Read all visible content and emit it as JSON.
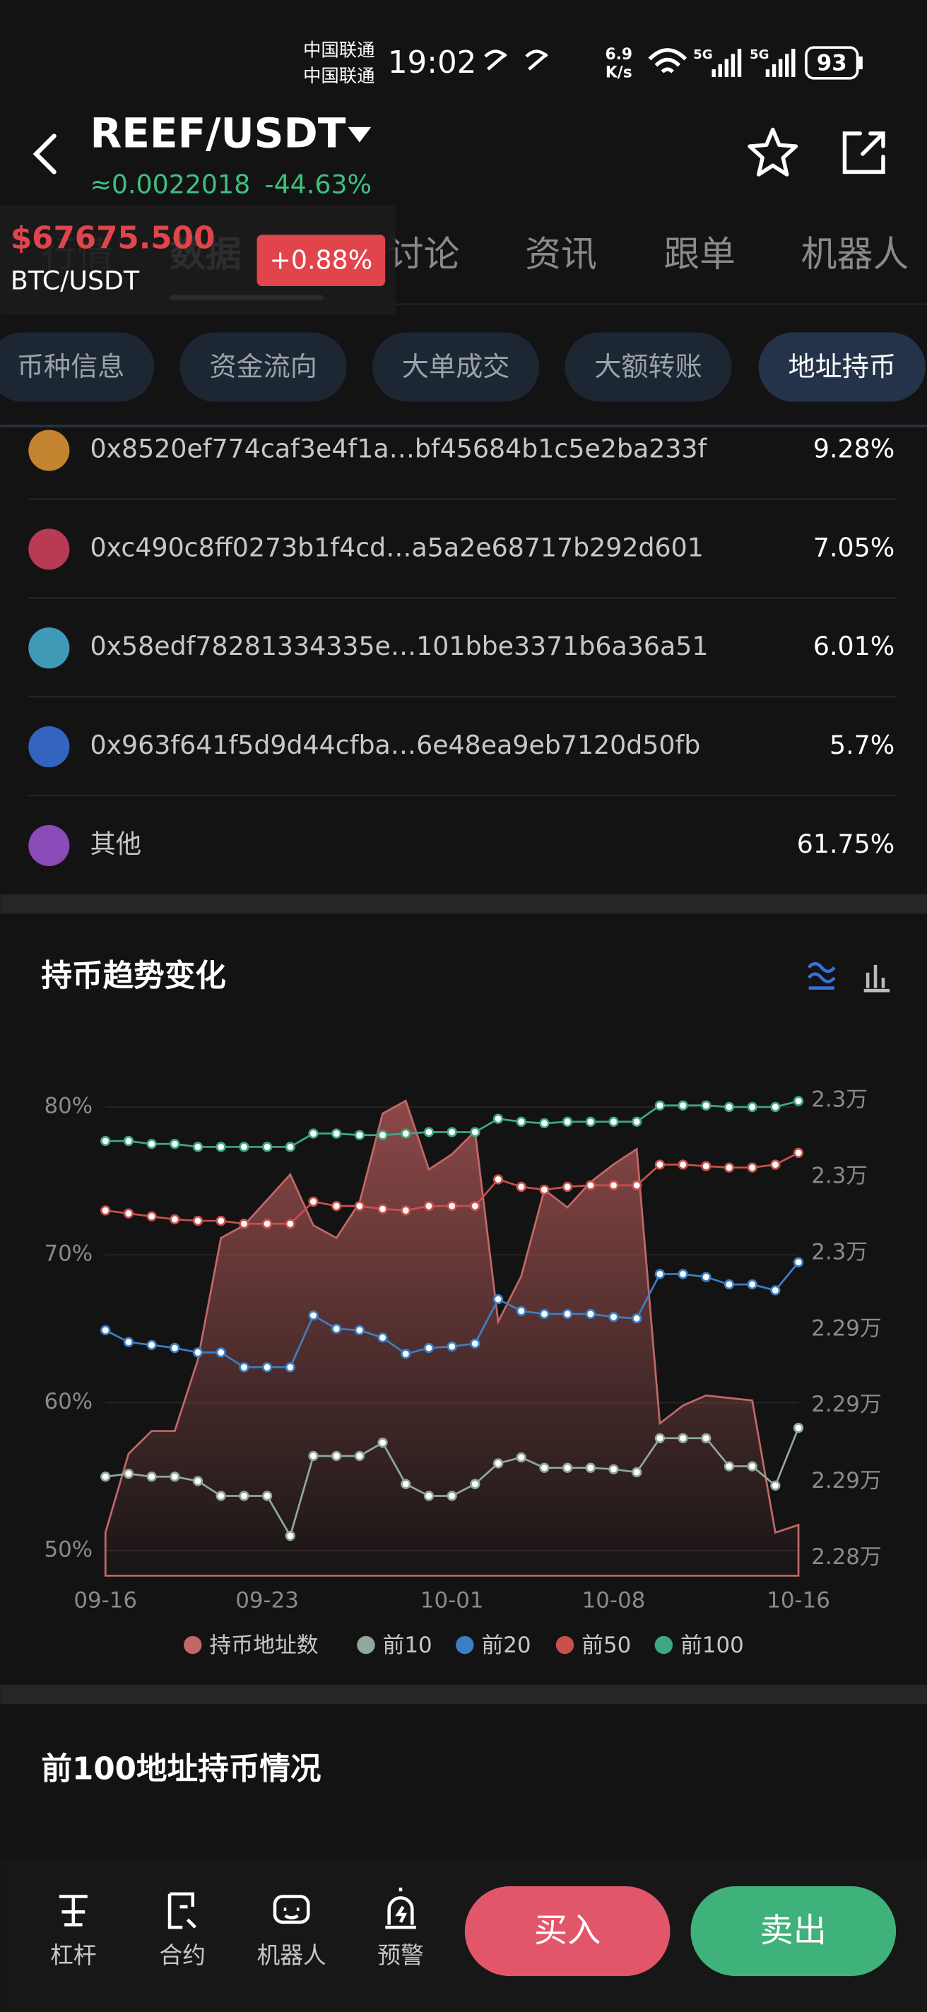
{
  "status_bar": {
    "carrier_1": "中国联通",
    "carrier_2": "中国联通",
    "time": "19:02",
    "speed": "6.9",
    "speed_unit": "K/s",
    "sim_1": "5G",
    "sim_2": "5G",
    "battery": "93"
  },
  "header": {
    "pair": "REEF/USDT",
    "price": "≈0.0022018",
    "change": "-44.63%"
  },
  "ticker": {
    "price": "$67675.500",
    "pair": "BTC/USDT",
    "change": "+0.88%"
  },
  "tabs": [
    "行情",
    "数据",
    "讨论",
    "资讯",
    "跟单",
    "机器人"
  ],
  "subtabs": [
    "币种信息",
    "资金流向",
    "大单成交",
    "大额转账",
    "地址持币"
  ],
  "holders": [
    {
      "address": "0x8520ef774caf3e4f1a…bf45684b1c5e2ba233f",
      "share": "9.28%",
      "color": "#c4842f"
    },
    {
      "address": "0xc490c8ff0273b1f4cd…a5a2e68717b292d601",
      "share": "7.05%",
      "color": "#b83a55"
    },
    {
      "address": "0x58edf78281334335e…101bbe3371b6a36a51",
      "share": "6.01%",
      "color": "#3f9ab8"
    },
    {
      "address": "0x963f641f5d9d44cfba…6e48ea9eb7120d50fb",
      "share": "5.7%",
      "color": "#3264c0"
    },
    {
      "address": "其他",
      "share": "61.75%",
      "color": "#8a4ab8"
    }
  ],
  "chart_section": {
    "title": "持币趋势变化"
  },
  "chart_data": {
    "type": "line",
    "categories": [
      "09-16",
      null,
      null,
      null,
      null,
      null,
      null,
      "09-23",
      null,
      null,
      null,
      null,
      null,
      null,
      null,
      "10-01",
      null,
      null,
      null,
      null,
      null,
      null,
      "10-08",
      null,
      null,
      null,
      null,
      null,
      null,
      null,
      "10-16"
    ],
    "ylim": [
      48.3,
      81.1
    ],
    "yticks": [
      {
        "value": 50,
        "label": "50%"
      },
      {
        "value": 60,
        "label": "60%"
      },
      {
        "value": 70,
        "label": "70%"
      },
      {
        "value": 80,
        "label": "80%"
      }
    ],
    "y2lim": [
      22823,
      23014
    ],
    "y2ticks": [
      {
        "value": 22830,
        "label": "2.28万"
      },
      {
        "value": 22860,
        "label": "2.29万"
      },
      {
        "value": 22890,
        "label": "2.29万"
      },
      {
        "value": 22920,
        "label": "2.29万"
      },
      {
        "value": 22950,
        "label": "2.3万"
      },
      {
        "value": 22980,
        "label": "2.3万"
      },
      {
        "value": 23010,
        "label": "2.3万"
      }
    ],
    "grid": true,
    "legend": "bottom",
    "series": [
      {
        "name": "持币地址数",
        "color": "#c06868",
        "axis": "y2",
        "fill": true,
        "values": [
          22840,
          22871,
          22880,
          22880,
          22908,
          22956,
          22961,
          22971,
          22981,
          22961,
          22956,
          22970,
          23005,
          23010,
          22983,
          22989,
          22998,
          22923,
          22941,
          22975,
          22968,
          22978,
          22985,
          22991,
          22883,
          22890,
          22894,
          22893,
          22892,
          22840,
          22843
        ]
      },
      {
        "name": "前10",
        "color": "#8fa89a",
        "values": [
          55.0,
          55.2,
          55.0,
          55.0,
          54.7,
          53.7,
          53.7,
          53.7,
          51.0,
          56.4,
          56.4,
          56.4,
          57.3,
          54.5,
          53.7,
          53.7,
          54.5,
          55.9,
          56.3,
          55.6,
          55.6,
          55.6,
          55.5,
          55.3,
          57.6,
          57.6,
          57.6,
          55.7,
          55.7,
          54.4,
          58.3
        ]
      },
      {
        "name": "前20",
        "color": "#3b7fc4",
        "values": [
          64.9,
          64.1,
          63.9,
          63.7,
          63.4,
          63.4,
          62.4,
          62.4,
          62.4,
          65.9,
          65.0,
          64.9,
          64.4,
          63.3,
          63.7,
          63.8,
          64.0,
          67.0,
          66.2,
          66.0,
          66.0,
          66.0,
          65.8,
          65.7,
          68.7,
          68.7,
          68.5,
          68.0,
          68.0,
          67.6,
          69.5
        ]
      },
      {
        "name": "前50",
        "color": "#c9504c",
        "values": [
          73.0,
          72.8,
          72.6,
          72.4,
          72.3,
          72.3,
          72.1,
          72.1,
          72.1,
          73.6,
          73.3,
          73.3,
          73.1,
          73.0,
          73.3,
          73.3,
          73.3,
          75.1,
          74.6,
          74.4,
          74.6,
          74.7,
          74.7,
          74.7,
          76.1,
          76.1,
          76.0,
          75.9,
          75.9,
          76.1,
          76.9
        ]
      },
      {
        "name": "前100",
        "color": "#3fa882",
        "values": [
          77.7,
          77.7,
          77.5,
          77.5,
          77.3,
          77.3,
          77.3,
          77.3,
          77.3,
          78.2,
          78.2,
          78.1,
          78.1,
          78.2,
          78.3,
          78.3,
          78.3,
          79.2,
          79.0,
          78.9,
          79.0,
          79.0,
          79.0,
          79.0,
          80.1,
          80.1,
          80.1,
          80.0,
          80.0,
          80.0,
          80.4
        ]
      }
    ]
  },
  "top100_section": {
    "title": "前100地址持币情况"
  },
  "bottom_nav": {
    "items": [
      "杠杆",
      "合约",
      "机器人",
      "预警"
    ],
    "buy": "买入",
    "sell": "卖出"
  }
}
